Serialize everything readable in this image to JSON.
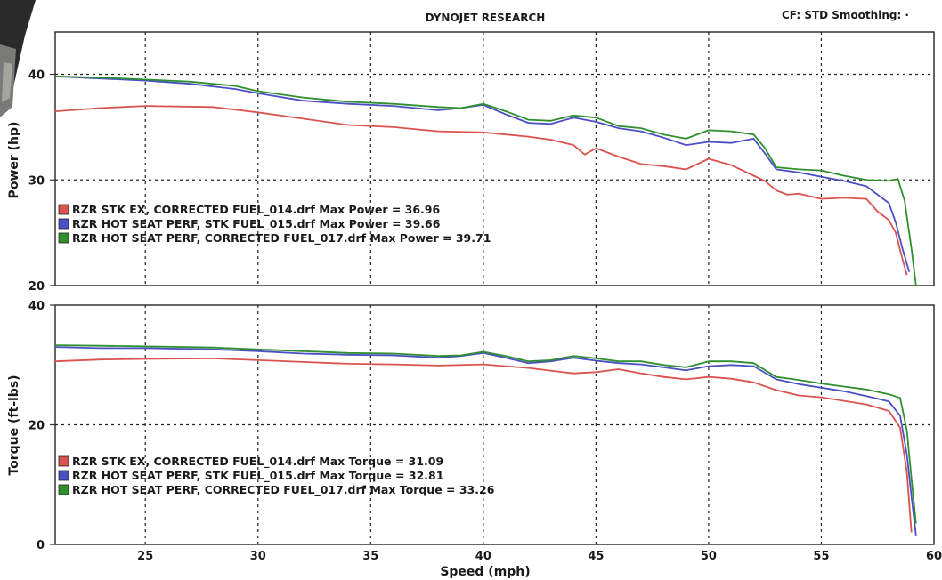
{
  "header": {
    "title": "DYNOJET RESEARCH",
    "settings": "CF: STD  Smoothing: ·"
  },
  "colors": {
    "red": "#d9534f",
    "blue": "#4a4fc4",
    "green": "#2f8f2f",
    "grid": "#222222",
    "frame": "#333333"
  },
  "chart_data": [
    {
      "type": "line",
      "ylabel": "Power (hp)",
      "xlabel": "",
      "xlim": [
        21,
        60
      ],
      "ylim": [
        20,
        44
      ],
      "x_ticks": [
        25,
        30,
        35,
        40,
        45,
        50,
        55,
        60
      ],
      "y_ticks": [
        20,
        30,
        40
      ],
      "legend": [
        "RZR STK EX, CORRECTED FUEL_014.drf Max Power = 36.96",
        "RZR HOT SEAT PERF, STK FUEL_015.drf Max Power = 39.66",
        "RZR HOT SEAT PERF, CORRECTED FUEL_017.drf Max Power = 39.71"
      ],
      "series": [
        {
          "color": "red",
          "points": [
            [
              21,
              36.5
            ],
            [
              23,
              36.8
            ],
            [
              25,
              37.0
            ],
            [
              28,
              36.9
            ],
            [
              30,
              36.4
            ],
            [
              32,
              35.8
            ],
            [
              34,
              35.2
            ],
            [
              36,
              35.0
            ],
            [
              38,
              34.6
            ],
            [
              40,
              34.5
            ],
            [
              42,
              34.1
            ],
            [
              43,
              33.8
            ],
            [
              44,
              33.3
            ],
            [
              44.5,
              32.4
            ],
            [
              45,
              33.0
            ],
            [
              46,
              32.2
            ],
            [
              47,
              31.5
            ],
            [
              48,
              31.3
            ],
            [
              49,
              31.0
            ],
            [
              50,
              32.0
            ],
            [
              51,
              31.4
            ],
            [
              52,
              30.4
            ],
            [
              52.5,
              29.9
            ],
            [
              53,
              29.0
            ],
            [
              53.5,
              28.6
            ],
            [
              54,
              28.7
            ],
            [
              55,
              28.2
            ],
            [
              56,
              28.3
            ],
            [
              57,
              28.2
            ],
            [
              57.5,
              27.0
            ],
            [
              58,
              26.2
            ],
            [
              58.3,
              25.0
            ],
            [
              58.6,
              22.5
            ],
            [
              58.8,
              21.0
            ]
          ]
        },
        {
          "color": "blue",
          "points": [
            [
              21,
              39.8
            ],
            [
              23,
              39.6
            ],
            [
              25,
              39.4
            ],
            [
              27,
              39.1
            ],
            [
              29,
              38.6
            ],
            [
              30,
              38.2
            ],
            [
              32,
              37.5
            ],
            [
              34,
              37.2
            ],
            [
              36,
              37.0
            ],
            [
              38,
              36.6
            ],
            [
              39,
              36.8
            ],
            [
              40,
              37.1
            ],
            [
              41,
              36.2
            ],
            [
              42,
              35.4
            ],
            [
              43,
              35.3
            ],
            [
              44,
              35.9
            ],
            [
              45,
              35.5
            ],
            [
              46,
              34.9
            ],
            [
              47,
              34.6
            ],
            [
              48,
              34.0
            ],
            [
              49,
              33.3
            ],
            [
              50,
              33.6
            ],
            [
              51,
              33.5
            ],
            [
              52,
              33.9
            ],
            [
              52.5,
              32.5
            ],
            [
              53,
              31.0
            ],
            [
              54,
              30.7
            ],
            [
              55,
              30.3
            ],
            [
              56,
              29.9
            ],
            [
              57,
              29.4
            ],
            [
              57.5,
              28.6
            ],
            [
              58,
              27.8
            ],
            [
              58.3,
              26.0
            ],
            [
              58.6,
              23.5
            ],
            [
              58.9,
              21.3
            ]
          ]
        },
        {
          "color": "green",
          "points": [
            [
              21,
              39.8
            ],
            [
              23,
              39.7
            ],
            [
              25,
              39.5
            ],
            [
              27,
              39.3
            ],
            [
              29,
              38.9
            ],
            [
              30,
              38.4
            ],
            [
              32,
              37.8
            ],
            [
              34,
              37.4
            ],
            [
              36,
              37.2
            ],
            [
              38,
              36.9
            ],
            [
              39,
              36.8
            ],
            [
              40,
              37.2
            ],
            [
              41,
              36.5
            ],
            [
              42,
              35.7
            ],
            [
              43,
              35.6
            ],
            [
              44,
              36.1
            ],
            [
              45,
              35.9
            ],
            [
              46,
              35.1
            ],
            [
              47,
              34.9
            ],
            [
              48,
              34.3
            ],
            [
              49,
              33.9
            ],
            [
              50,
              34.7
            ],
            [
              51,
              34.6
            ],
            [
              52,
              34.3
            ],
            [
              52.5,
              33.0
            ],
            [
              53,
              31.2
            ],
            [
              54,
              31.0
            ],
            [
              55,
              30.9
            ],
            [
              56,
              30.4
            ],
            [
              57,
              30.0
            ],
            [
              58,
              29.9
            ],
            [
              58.4,
              30.1
            ],
            [
              58.7,
              28.0
            ],
            [
              59,
              23.5
            ],
            [
              59.2,
              20.0
            ]
          ]
        }
      ]
    },
    {
      "type": "line",
      "ylabel": "Torque (ft-lbs)",
      "xlabel": "Speed (mph)",
      "xlim": [
        21,
        60
      ],
      "ylim": [
        0,
        40
      ],
      "x_ticks": [
        25,
        30,
        35,
        40,
        45,
        50,
        55,
        60
      ],
      "y_ticks": [
        0,
        20,
        40
      ],
      "legend": [
        "RZR STK EX, CORRECTED FUEL_014.drf Max Torque = 31.09",
        "RZR HOT SEAT PERF, STK FUEL_015.drf Max Torque = 32.81",
        "RZR HOT SEAT PERF, CORRECTED FUEL_017.drf Max Torque = 33.26"
      ],
      "series": [
        {
          "color": "red",
          "points": [
            [
              21,
              30.6
            ],
            [
              23,
              30.9
            ],
            [
              25,
              31.0
            ],
            [
              28,
              31.1
            ],
            [
              30,
              30.8
            ],
            [
              32,
              30.5
            ],
            [
              34,
              30.2
            ],
            [
              36,
              30.1
            ],
            [
              38,
              29.9
            ],
            [
              40,
              30.1
            ],
            [
              42,
              29.5
            ],
            [
              44,
              28.6
            ],
            [
              45,
              28.8
            ],
            [
              46,
              29.3
            ],
            [
              47,
              28.6
            ],
            [
              48,
              28.0
            ],
            [
              49,
              27.6
            ],
            [
              50,
              28.0
            ],
            [
              51,
              27.7
            ],
            [
              52,
              27.1
            ],
            [
              53,
              25.8
            ],
            [
              54,
              24.9
            ],
            [
              55,
              24.6
            ],
            [
              56,
              24.0
            ],
            [
              57,
              23.4
            ],
            [
              58,
              22.3
            ],
            [
              58.5,
              19.5
            ],
            [
              58.8,
              12.0
            ],
            [
              59,
              2.0
            ]
          ]
        },
        {
          "color": "blue",
          "points": [
            [
              21,
              33.0
            ],
            [
              23,
              32.8
            ],
            [
              25,
              32.8
            ],
            [
              28,
              32.6
            ],
            [
              30,
              32.3
            ],
            [
              32,
              31.9
            ],
            [
              34,
              31.7
            ],
            [
              36,
              31.6
            ],
            [
              38,
              31.2
            ],
            [
              39,
              31.5
            ],
            [
              40,
              32.0
            ],
            [
              41,
              31.2
            ],
            [
              42,
              30.3
            ],
            [
              43,
              30.6
            ],
            [
              44,
              31.2
            ],
            [
              45,
              30.7
            ],
            [
              46,
              30.3
            ],
            [
              47,
              30.1
            ],
            [
              48,
              29.6
            ],
            [
              49,
              29.1
            ],
            [
              50,
              29.8
            ],
            [
              51,
              30.0
            ],
            [
              52,
              29.8
            ],
            [
              53,
              27.6
            ],
            [
              54,
              26.8
            ],
            [
              55,
              26.2
            ],
            [
              56,
              25.6
            ],
            [
              57,
              24.8
            ],
            [
              58,
              23.9
            ],
            [
              58.5,
              21.5
            ],
            [
              58.8,
              15.0
            ],
            [
              59,
              8.0
            ],
            [
              59.2,
              1.5
            ]
          ]
        },
        {
          "color": "green",
          "points": [
            [
              21,
              33.3
            ],
            [
              23,
              33.2
            ],
            [
              25,
              33.1
            ],
            [
              28,
              32.9
            ],
            [
              30,
              32.6
            ],
            [
              32,
              32.3
            ],
            [
              34,
              32.0
            ],
            [
              36,
              31.9
            ],
            [
              38,
              31.5
            ],
            [
              39,
              31.6
            ],
            [
              40,
              32.2
            ],
            [
              41,
              31.5
            ],
            [
              42,
              30.6
            ],
            [
              43,
              30.8
            ],
            [
              44,
              31.5
            ],
            [
              45,
              31.1
            ],
            [
              46,
              30.6
            ],
            [
              47,
              30.6
            ],
            [
              48,
              30.0
            ],
            [
              49,
              29.6
            ],
            [
              50,
              30.6
            ],
            [
              51,
              30.6
            ],
            [
              52,
              30.3
            ],
            [
              53,
              28.0
            ],
            [
              54,
              27.5
            ],
            [
              55,
              26.9
            ],
            [
              56,
              26.4
            ],
            [
              57,
              25.9
            ],
            [
              58,
              25.1
            ],
            [
              58.5,
              24.5
            ],
            [
              58.8,
              19.0
            ],
            [
              59,
              11.0
            ],
            [
              59.2,
              3.5
            ]
          ]
        }
      ]
    }
  ]
}
